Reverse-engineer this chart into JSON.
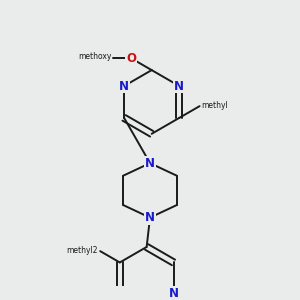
{
  "bg_color": "#eaeceb",
  "bond_color": "#1a1a1a",
  "N_color": "#1a1acc",
  "O_color": "#cc1111",
  "line_width": 1.4,
  "font_size": 8.5,
  "figsize": [
    3.0,
    3.0
  ],
  "dpi": 100,
  "xlim": [
    0.8,
    3.2
  ],
  "ylim": [
    0.3,
    3.7
  ]
}
